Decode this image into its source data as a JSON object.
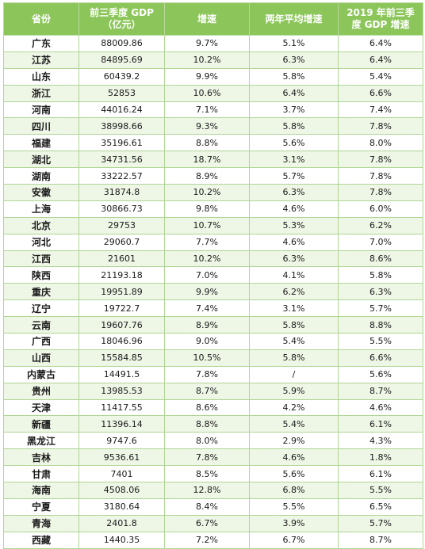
{
  "table": {
    "headers": [
      "省份",
      "前三季度 GDP\n（亿元）",
      "增速",
      "两年平均增速",
      "2019 年前三季\n度 GDP 增速"
    ],
    "rows": [
      [
        "广东",
        "88009.86",
        "9.7%",
        "5.1%",
        "6.4%"
      ],
      [
        "江苏",
        "84895.69",
        "10.2%",
        "6.3%",
        "6.4%"
      ],
      [
        "山东",
        "60439.2",
        "9.9%",
        "5.8%",
        "5.4%"
      ],
      [
        "浙江",
        "52853",
        "10.6%",
        "6.4%",
        "6.6%"
      ],
      [
        "河南",
        "44016.24",
        "7.1%",
        "3.7%",
        "7.4%"
      ],
      [
        "四川",
        "38998.66",
        "9.3%",
        "5.8%",
        "7.8%"
      ],
      [
        "福建",
        "35196.61",
        "8.8%",
        "5.6%",
        "8.0%"
      ],
      [
        "湖北",
        "34731.56",
        "18.7%",
        "3.1%",
        "7.8%"
      ],
      [
        "湖南",
        "33222.57",
        "8.9%",
        "5.7%",
        "7.8%"
      ],
      [
        "安徽",
        "31874.8",
        "10.2%",
        "6.3%",
        "7.8%"
      ],
      [
        "上海",
        "30866.73",
        "9.8%",
        "4.6%",
        "6.0%"
      ],
      [
        "北京",
        "29753",
        "10.7%",
        "5.3%",
        "6.2%"
      ],
      [
        "河北",
        "29060.7",
        "7.7%",
        "4.6%",
        "7.0%"
      ],
      [
        "江西",
        "21601",
        "10.2%",
        "6.3%",
        "8.6%"
      ],
      [
        "陕西",
        "21193.18",
        "7.0%",
        "4.1%",
        "5.8%"
      ],
      [
        "重庆",
        "19951.89",
        "9.9%",
        "6.2%",
        "6.3%"
      ],
      [
        "辽宁",
        "19722.7",
        "7.4%",
        "3.1%",
        "5.7%"
      ],
      [
        "云南",
        "19607.76",
        "8.9%",
        "5.8%",
        "8.8%"
      ],
      [
        "广西",
        "18046.96",
        "9.0%",
        "5.4%",
        "5.5%"
      ],
      [
        "山西",
        "15584.85",
        "10.5%",
        "5.8%",
        "6.6%"
      ],
      [
        "内蒙古",
        "14491.5",
        "7.8%",
        "/",
        "5.6%"
      ],
      [
        "贵州",
        "13985.53",
        "8.7%",
        "5.9%",
        "8.7%"
      ],
      [
        "天津",
        "11417.55",
        "8.6%",
        "4.2%",
        "4.6%"
      ],
      [
        "新疆",
        "11396.14",
        "8.8%",
        "5.4%",
        "6.1%"
      ],
      [
        "黑龙江",
        "9747.6",
        "8.0%",
        "2.9%",
        "4.3%"
      ],
      [
        "吉林",
        "9536.61",
        "7.8%",
        "4.6%",
        "1.8%"
      ],
      [
        "甘肃",
        "7401",
        "8.5%",
        "5.6%",
        "6.1%"
      ],
      [
        "海南",
        "4508.06",
        "12.8%",
        "6.8%",
        "5.5%"
      ],
      [
        "宁夏",
        "3180.64",
        "8.4%",
        "5.5%",
        "6.5%"
      ],
      [
        "青海",
        "2401.8",
        "6.7%",
        "3.9%",
        "5.7%"
      ],
      [
        "西藏",
        "1440.35",
        "7.2%",
        "6.7%",
        "8.7%"
      ]
    ]
  }
}
